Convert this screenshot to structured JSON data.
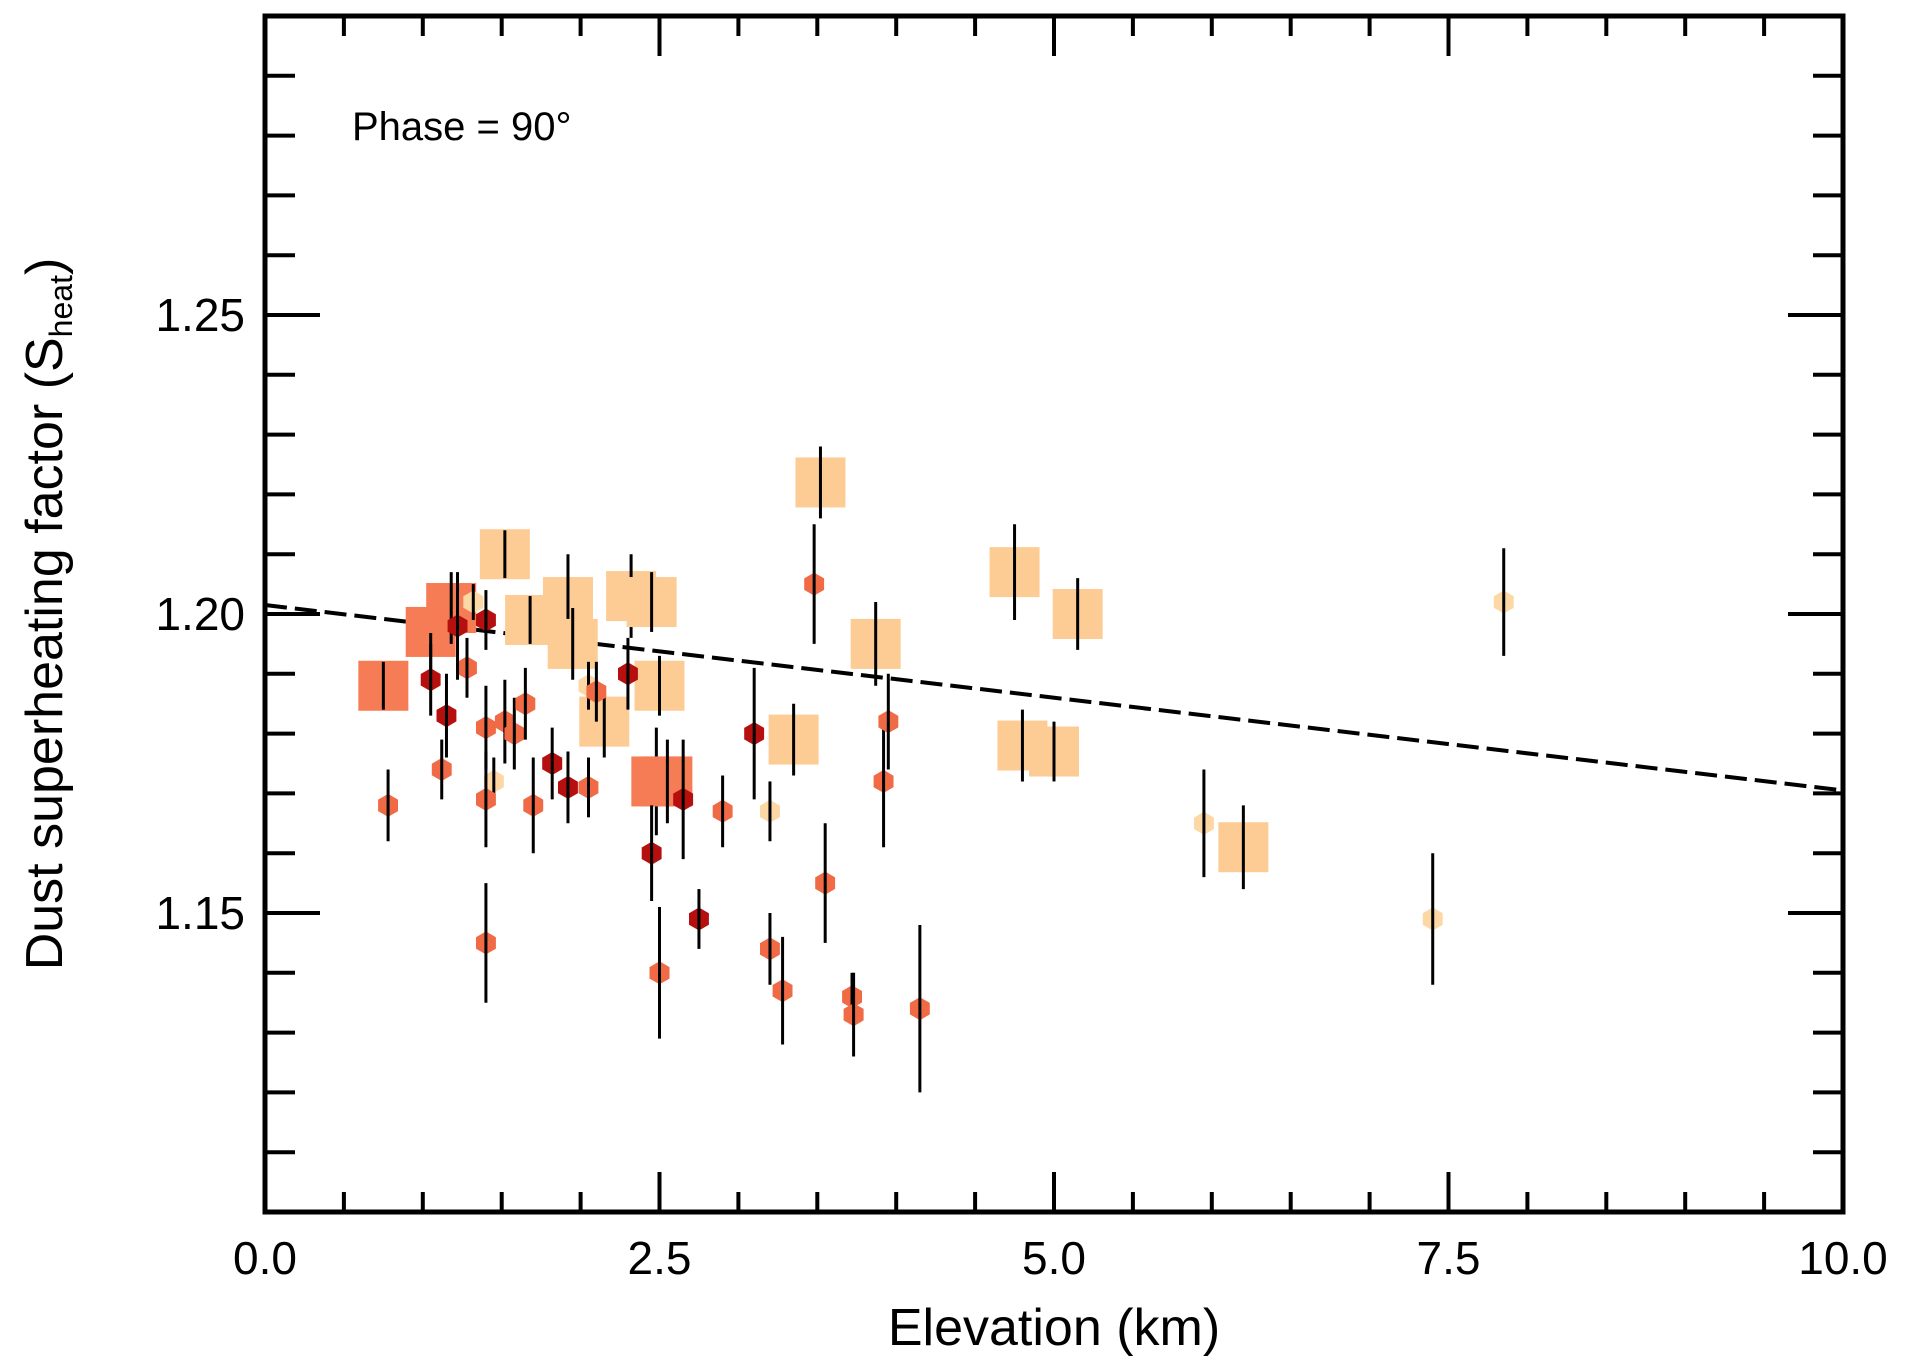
{
  "chart_data": {
    "type": "scatter",
    "title": "",
    "annotation": "Phase = 90°",
    "xlabel": "Elevation  (km)",
    "ylabel": "Dust superheating factor (S",
    "ylabel_sub": "heat",
    "ylabel_close": ")",
    "xlim": [
      0.0,
      10.0
    ],
    "ylim": [
      1.1,
      1.3
    ],
    "x_ticks": [
      0.0,
      2.5,
      5.0,
      7.5,
      10.0
    ],
    "x_tick_labels": [
      "0.0",
      "2.5",
      "5.0",
      "7.5",
      "10.0"
    ],
    "y_ticks": [
      1.15,
      1.2,
      1.25
    ],
    "y_tick_labels": [
      "1.15",
      "1.20",
      "1.25"
    ],
    "x_minor_step": 0.5,
    "y_minor_step": 0.01,
    "grid": false,
    "colors": {
      "light_square": "#fdcc94",
      "medium_square": "#f67c55",
      "light_hex": "#fdd7a4",
      "medium_hex": "#f06a45",
      "dark_hex": "#b50f0f",
      "errorbar": "#000000",
      "fit_line": "#000000"
    },
    "fit_line": {
      "style": "dashed",
      "x": [
        0.0,
        10.0
      ],
      "y": [
        1.2015,
        1.1705
      ]
    },
    "series": [
      {
        "name": "large squares (light)",
        "marker": "square",
        "size": "large",
        "color": "light_square",
        "points": [
          {
            "x": 1.52,
            "y": 1.21,
            "err": 0.004
          },
          {
            "x": 1.68,
            "y": 1.199,
            "err": 0.004
          },
          {
            "x": 1.92,
            "y": 1.202,
            "err": 0.008
          },
          {
            "x": 1.95,
            "y": 1.195,
            "err": 0.006
          },
          {
            "x": 2.15,
            "y": 1.182,
            "err": 0.006
          },
          {
            "x": 2.32,
            "y": 1.203,
            "err": 0.007
          },
          {
            "x": 2.45,
            "y": 1.202,
            "err": 0.005
          },
          {
            "x": 2.5,
            "y": 1.188,
            "err": 0.005
          },
          {
            "x": 3.35,
            "y": 1.179,
            "err": 0.006
          },
          {
            "x": 3.52,
            "y": 1.222,
            "err": 0.006
          },
          {
            "x": 3.87,
            "y": 1.195,
            "err": 0.007
          },
          {
            "x": 4.75,
            "y": 1.207,
            "err": 0.008
          },
          {
            "x": 4.8,
            "y": 1.178,
            "err": 0.006
          },
          {
            "x": 5.0,
            "y": 1.177,
            "err": 0.005
          },
          {
            "x": 5.15,
            "y": 1.2,
            "err": 0.006
          },
          {
            "x": 6.2,
            "y": 1.161,
            "err": 0.007
          }
        ]
      },
      {
        "name": "large squares (medium)",
        "marker": "square",
        "size": "large",
        "color": "medium_square",
        "points": [
          {
            "x": 0.75,
            "y": 1.188,
            "err": 0.004
          },
          {
            "x": 1.05,
            "y": 1.197,
            "err": 0.008
          },
          {
            "x": 1.18,
            "y": 1.201,
            "err": 0.006
          },
          {
            "x": 2.48,
            "y": 1.172,
            "err": 0.009
          },
          {
            "x": 2.55,
            "y": 1.172,
            "err": 0.007
          }
        ]
      },
      {
        "name": "small hexagons (light)",
        "marker": "hexagon",
        "size": "small",
        "color": "light_hex",
        "points": [
          {
            "x": 1.32,
            "y": 1.202,
            "err": 0.003
          },
          {
            "x": 1.45,
            "y": 1.172,
            "err": 0.004
          },
          {
            "x": 2.05,
            "y": 1.188,
            "err": 0.004
          },
          {
            "x": 3.2,
            "y": 1.167,
            "err": 0.005
          },
          {
            "x": 5.95,
            "y": 1.165,
            "err": 0.009
          },
          {
            "x": 7.4,
            "y": 1.149,
            "err": 0.011
          },
          {
            "x": 7.85,
            "y": 1.202,
            "err": 0.009
          }
        ]
      },
      {
        "name": "small hexagons (medium)",
        "marker": "hexagon",
        "size": "small",
        "color": "medium_hex",
        "points": [
          {
            "x": 0.78,
            "y": 1.168,
            "err": 0.006
          },
          {
            "x": 1.12,
            "y": 1.174,
            "err": 0.005
          },
          {
            "x": 1.28,
            "y": 1.191,
            "err": 0.005
          },
          {
            "x": 1.4,
            "y": 1.181,
            "err": 0.007
          },
          {
            "x": 1.4,
            "y": 1.169,
            "err": 0.008
          },
          {
            "x": 1.4,
            "y": 1.145,
            "err": 0.01
          },
          {
            "x": 1.52,
            "y": 1.182,
            "err": 0.007
          },
          {
            "x": 1.58,
            "y": 1.18,
            "err": 0.006
          },
          {
            "x": 1.65,
            "y": 1.185,
            "err": 0.006
          },
          {
            "x": 1.7,
            "y": 1.168,
            "err": 0.008
          },
          {
            "x": 2.05,
            "y": 1.171,
            "err": 0.005
          },
          {
            "x": 2.1,
            "y": 1.187,
            "err": 0.005
          },
          {
            "x": 2.5,
            "y": 1.14,
            "err": 0.011
          },
          {
            "x": 2.9,
            "y": 1.167,
            "err": 0.006
          },
          {
            "x": 3.2,
            "y": 1.144,
            "err": 0.006
          },
          {
            "x": 3.28,
            "y": 1.137,
            "err": 0.009
          },
          {
            "x": 3.48,
            "y": 1.205,
            "err": 0.01
          },
          {
            "x": 3.55,
            "y": 1.155,
            "err": 0.01
          },
          {
            "x": 3.72,
            "y": 1.136,
            "err": 0.004
          },
          {
            "x": 3.73,
            "y": 1.133,
            "err": 0.007
          },
          {
            "x": 3.92,
            "y": 1.172,
            "err": 0.011
          },
          {
            "x": 3.95,
            "y": 1.182,
            "err": 0.008
          },
          {
            "x": 4.15,
            "y": 1.134,
            "err": 0.014
          }
        ]
      },
      {
        "name": "small hexagons (dark)",
        "marker": "hexagon",
        "size": "small",
        "color": "dark_hex",
        "points": [
          {
            "x": 1.05,
            "y": 1.189,
            "err": 0.006
          },
          {
            "x": 1.15,
            "y": 1.183,
            "err": 0.007
          },
          {
            "x": 1.22,
            "y": 1.198,
            "err": 0.009
          },
          {
            "x": 1.4,
            "y": 1.199,
            "err": 0.005
          },
          {
            "x": 1.82,
            "y": 1.175,
            "err": 0.006
          },
          {
            "x": 1.92,
            "y": 1.171,
            "err": 0.006
          },
          {
            "x": 2.3,
            "y": 1.19,
            "err": 0.006
          },
          {
            "x": 2.45,
            "y": 1.16,
            "err": 0.008
          },
          {
            "x": 2.65,
            "y": 1.169,
            "err": 0.01
          },
          {
            "x": 2.75,
            "y": 1.149,
            "err": 0.005
          },
          {
            "x": 3.1,
            "y": 1.18,
            "err": 0.011
          }
        ]
      }
    ]
  }
}
